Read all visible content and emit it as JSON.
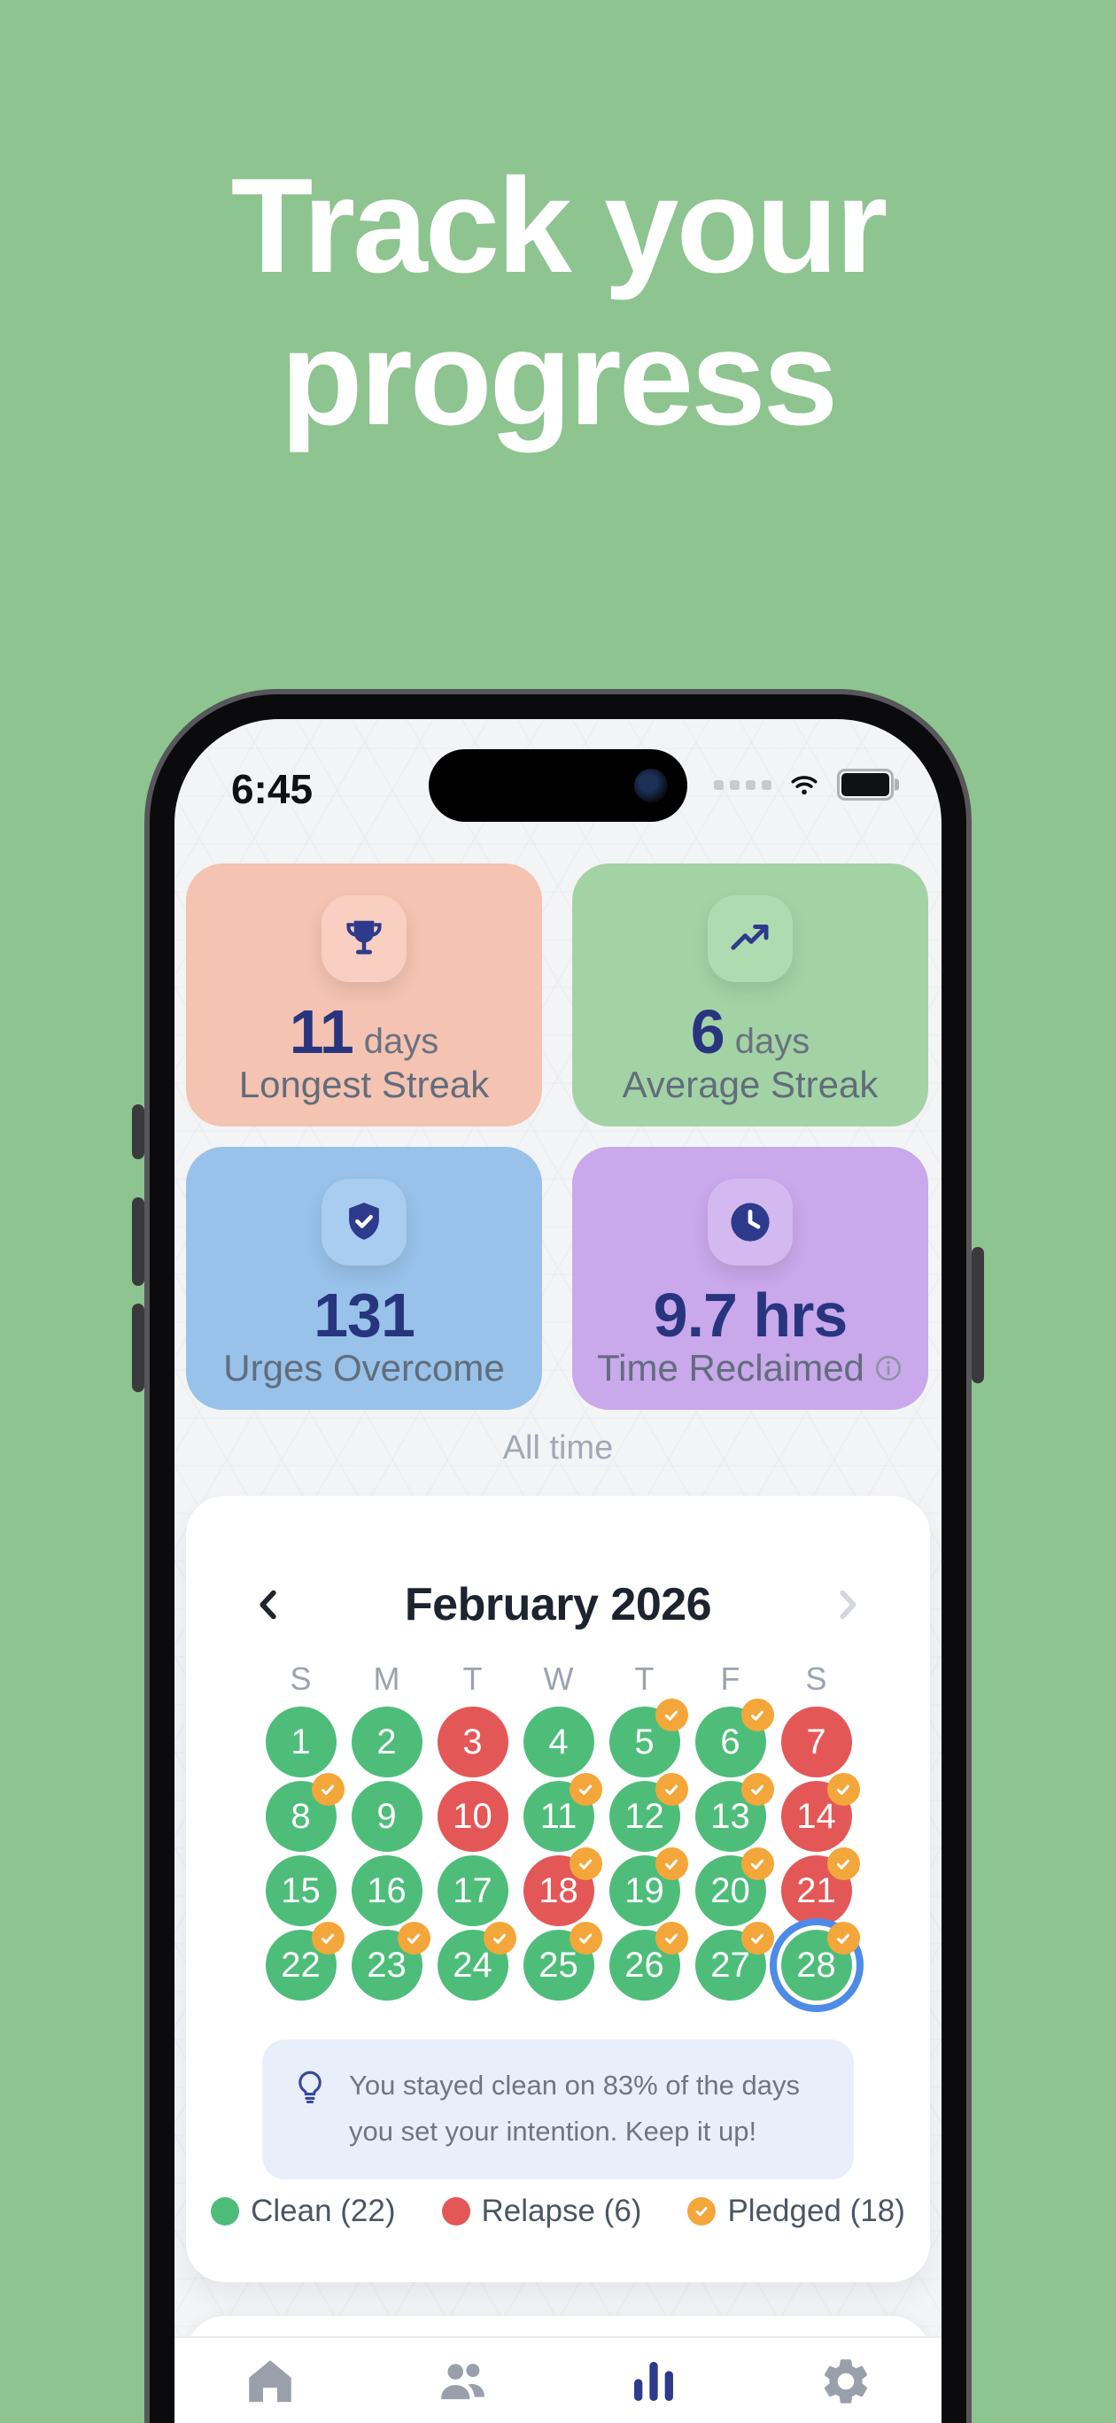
{
  "title": {
    "line1": "Track your",
    "line2": "progress"
  },
  "colors": {
    "background_green": "#8DC48F",
    "accent_navy": "#2E3A8C",
    "clean_green": "#4EBD7A",
    "relapse_red": "#E45757",
    "pledged_orange": "#F3A63A",
    "today_ring_blue": "#4D8BE8"
  },
  "status_bar": {
    "time": "6:45"
  },
  "stats": {
    "cards": [
      {
        "icon": "trophy-icon",
        "value": "11",
        "unit": "days",
        "label": "Longest Streak",
        "has_info": false,
        "bg": "#F4C3B1",
        "pill_bg": "#F8CFC0"
      },
      {
        "icon": "trending-up-icon",
        "value": "6",
        "unit": "days",
        "label": "Average Streak",
        "has_info": false,
        "bg": "#A3D3A5",
        "pill_bg": "#AFDBB1"
      },
      {
        "icon": "shield-check-icon",
        "value": "131",
        "unit": "",
        "label": "Urges Overcome",
        "has_info": false,
        "bg": "#98C2EA",
        "pill_bg": "#A8CDF0"
      },
      {
        "icon": "clock-icon",
        "value": "9.7 hrs",
        "unit": "",
        "label": "Time Reclaimed",
        "has_info": true,
        "bg": "#C9A8EB",
        "pill_bg": "#D4B8F0"
      }
    ],
    "period_label": "All time"
  },
  "calendar": {
    "month_title": "February 2026",
    "day_headers": [
      "S",
      "M",
      "T",
      "W",
      "T",
      "F",
      "S"
    ],
    "days": [
      {
        "n": 1,
        "state": "clean",
        "pledged": false,
        "selected": false
      },
      {
        "n": 2,
        "state": "clean",
        "pledged": false,
        "selected": false
      },
      {
        "n": 3,
        "state": "relapse",
        "pledged": false,
        "selected": false
      },
      {
        "n": 4,
        "state": "clean",
        "pledged": false,
        "selected": false
      },
      {
        "n": 5,
        "state": "clean",
        "pledged": true,
        "selected": false
      },
      {
        "n": 6,
        "state": "clean",
        "pledged": true,
        "selected": false
      },
      {
        "n": 7,
        "state": "relapse",
        "pledged": false,
        "selected": false
      },
      {
        "n": 8,
        "state": "clean",
        "pledged": true,
        "selected": false
      },
      {
        "n": 9,
        "state": "clean",
        "pledged": false,
        "selected": false
      },
      {
        "n": 10,
        "state": "relapse",
        "pledged": false,
        "selected": false
      },
      {
        "n": 11,
        "state": "clean",
        "pledged": true,
        "selected": false
      },
      {
        "n": 12,
        "state": "clean",
        "pledged": true,
        "selected": false
      },
      {
        "n": 13,
        "state": "clean",
        "pledged": true,
        "selected": false
      },
      {
        "n": 14,
        "state": "relapse",
        "pledged": true,
        "selected": false
      },
      {
        "n": 15,
        "state": "clean",
        "pledged": false,
        "selected": false
      },
      {
        "n": 16,
        "state": "clean",
        "pledged": false,
        "selected": false
      },
      {
        "n": 17,
        "state": "clean",
        "pledged": false,
        "selected": false
      },
      {
        "n": 18,
        "state": "relapse",
        "pledged": true,
        "selected": false
      },
      {
        "n": 19,
        "state": "clean",
        "pledged": true,
        "selected": false
      },
      {
        "n": 20,
        "state": "clean",
        "pledged": true,
        "selected": false
      },
      {
        "n": 21,
        "state": "relapse",
        "pledged": true,
        "selected": false
      },
      {
        "n": 22,
        "state": "clean",
        "pledged": true,
        "selected": false
      },
      {
        "n": 23,
        "state": "clean",
        "pledged": true,
        "selected": false
      },
      {
        "n": 24,
        "state": "clean",
        "pledged": true,
        "selected": false
      },
      {
        "n": 25,
        "state": "clean",
        "pledged": true,
        "selected": false
      },
      {
        "n": 26,
        "state": "clean",
        "pledged": true,
        "selected": false
      },
      {
        "n": 27,
        "state": "clean",
        "pledged": true,
        "selected": false
      },
      {
        "n": 28,
        "state": "clean",
        "pledged": true,
        "selected": true
      }
    ],
    "insight": "You stayed clean on 83% of the days you set your intention. Keep it up!",
    "legend": [
      {
        "label": "Clean (22)",
        "color": "#4EBD7A",
        "check": false
      },
      {
        "label": "Relapse (6)",
        "color": "#E45757",
        "check": false
      },
      {
        "label": "Pledged (18)",
        "color": "#F3A63A",
        "check": true
      }
    ]
  },
  "tab_bar": {
    "items": [
      {
        "name": "home",
        "icon": "home-icon",
        "active": false
      },
      {
        "name": "community",
        "icon": "users-icon",
        "active": false
      },
      {
        "name": "stats",
        "icon": "bar-chart-icon",
        "active": true
      },
      {
        "name": "settings",
        "icon": "gear-icon",
        "active": false
      }
    ]
  }
}
